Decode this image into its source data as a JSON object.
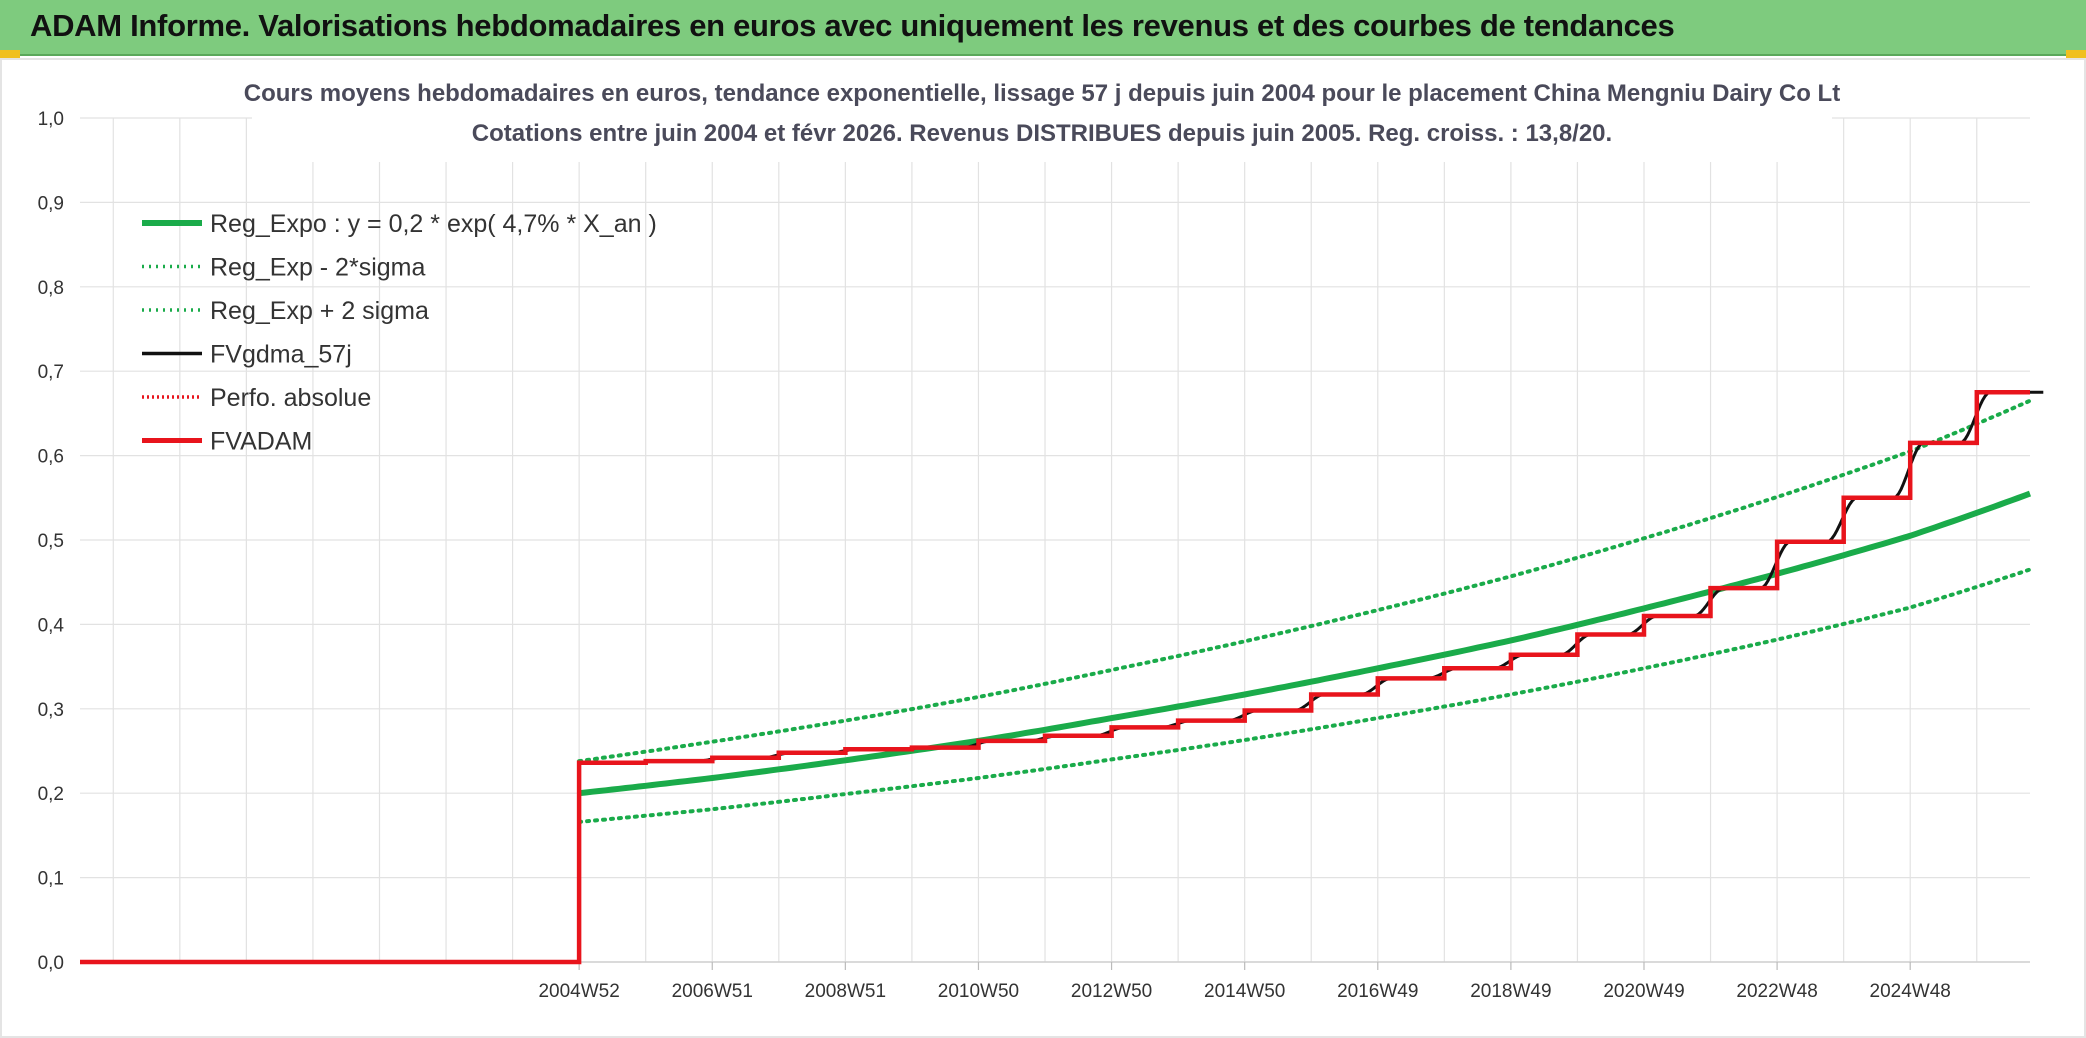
{
  "banner": {
    "title": "ADAM Informe. Valorisations hebdomadaires en euros avec uniquement les revenus et des courbes de tendances"
  },
  "colors": {
    "banner_bg": "#7ecb7e",
    "green": "#1aab4a",
    "red": "#e8141c",
    "black": "#111111",
    "grid": "#e2e2e2"
  },
  "chart_data": {
    "type": "line",
    "title": "Cours moyens hebdomadaires en euros, tendance exponentielle, lissage 57 j depuis juin 2004 pour le placement China Mengniu Dairy Co Lt",
    "subtitle": "Cotations entre juin 2004 et févr 2026. Revenus DISTRIBUES depuis juin 2005. Reg. croiss. : 13,8/20.",
    "xlabel": "",
    "ylabel": "",
    "ylim": [
      0,
      1.0
    ],
    "y_ticks": [
      "0,0",
      "0,1",
      "0,2",
      "0,3",
      "0,4",
      "0,5",
      "0,6",
      "0,7",
      "0,8",
      "0,9",
      "1,0"
    ],
    "x_range": [
      1997.0,
      2026.3
    ],
    "x_ticks": [
      {
        "label": "2004W52",
        "x": 2004.5
      },
      {
        "label": "2006W51",
        "x": 2006.5
      },
      {
        "label": "2008W51",
        "x": 2008.5
      },
      {
        "label": "2010W50",
        "x": 2010.5
      },
      {
        "label": "2012W50",
        "x": 2012.5
      },
      {
        "label": "2014W50",
        "x": 2014.5
      },
      {
        "label": "2016W49",
        "x": 2016.5
      },
      {
        "label": "2018W49",
        "x": 2018.5
      },
      {
        "label": "2020W49",
        "x": 2020.5
      },
      {
        "label": "2022W48",
        "x": 2022.5
      },
      {
        "label": "2024W48",
        "x": 2024.5
      }
    ],
    "grid": true,
    "legend_position": "top-left",
    "legend": [
      {
        "name": "Reg_Expo : y = 0,2 * exp( 4,7% *  X_an )",
        "style": "solid",
        "color": "#1aab4a"
      },
      {
        "name": "Reg_Exp - 2*sigma",
        "style": "dotted",
        "color": "#1aab4a"
      },
      {
        "name": "Reg_Exp + 2 sigma",
        "style": "dotted",
        "color": "#1aab4a"
      },
      {
        "name": "FVgdma_57j",
        "style": "solid",
        "color": "#111111"
      },
      {
        "name": "Perfo. absolue",
        "style": "dotted",
        "color": "#e8141c"
      },
      {
        "name": "FVADAM",
        "style": "solid",
        "color": "#e8141c"
      }
    ],
    "series": [
      {
        "name": "Reg_Expo : y = 0,2 * exp( 4,7% *  X_an )",
        "kind": "exponential",
        "x": [
          2004.5,
          2006.5,
          2008.5,
          2010.5,
          2012.5,
          2014.5,
          2016.5,
          2018.5,
          2020.5,
          2022.5,
          2024.5,
          2026.3
        ],
        "values": [
          0.2,
          0.218,
          0.239,
          0.262,
          0.289,
          0.317,
          0.348,
          0.381,
          0.419,
          0.46,
          0.505,
          0.555
        ]
      },
      {
        "name": "Reg_Exp - 2*sigma",
        "kind": "band-low",
        "x": [
          2004.5,
          2006.5,
          2008.5,
          2010.5,
          2012.5,
          2014.5,
          2016.5,
          2018.5,
          2020.5,
          2022.5,
          2024.5,
          2026.3
        ],
        "values": [
          0.166,
          0.181,
          0.199,
          0.218,
          0.24,
          0.263,
          0.289,
          0.317,
          0.348,
          0.382,
          0.42,
          0.465
        ]
      },
      {
        "name": "Reg_Exp + 2 sigma",
        "kind": "band-high",
        "x": [
          2004.5,
          2006.5,
          2008.5,
          2010.5,
          2012.5,
          2014.5,
          2016.5,
          2018.5,
          2020.5,
          2022.5,
          2024.5,
          2026.3
        ],
        "values": [
          0.238,
          0.261,
          0.286,
          0.314,
          0.346,
          0.38,
          0.417,
          0.457,
          0.502,
          0.551,
          0.605,
          0.665
        ]
      },
      {
        "name": "FVADAM",
        "kind": "step",
        "x": [
          1997.0,
          2004.5,
          2005.5,
          2006.5,
          2007.5,
          2008.5,
          2009.5,
          2010.5,
          2011.5,
          2012.5,
          2013.5,
          2014.5,
          2015.5,
          2016.5,
          2017.5,
          2018.5,
          2019.5,
          2020.5,
          2021.5,
          2022.5,
          2023.5,
          2024.5,
          2025.5,
          2026.3
        ],
        "values": [
          0.0,
          0.236,
          0.238,
          0.242,
          0.248,
          0.252,
          0.254,
          0.262,
          0.268,
          0.278,
          0.286,
          0.298,
          0.317,
          0.336,
          0.348,
          0.364,
          0.388,
          0.41,
          0.443,
          0.498,
          0.55,
          0.615,
          0.675,
          0.675
        ]
      },
      {
        "name": "FVgdma_57j",
        "kind": "smoothed-step",
        "follows": "FVADAM"
      }
    ]
  }
}
